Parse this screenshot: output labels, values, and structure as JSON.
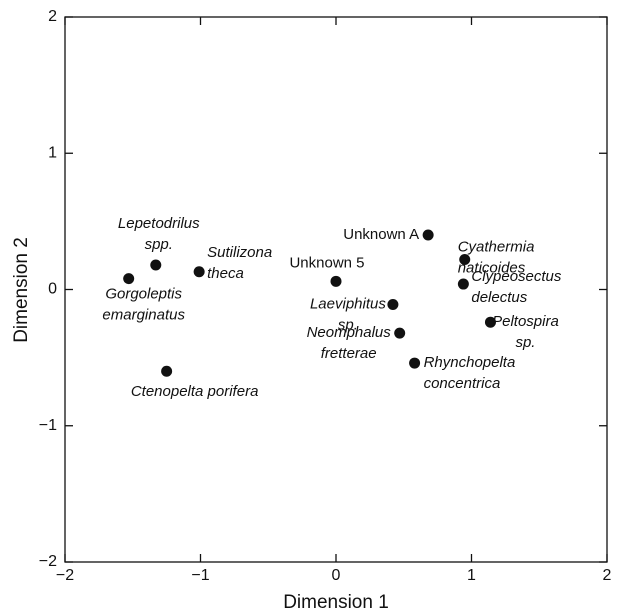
{
  "chart_data": {
    "type": "scatter",
    "xlabel": "Dimension 1",
    "ylabel": "Dimension 2",
    "xlim": [
      -2,
      2
    ],
    "ylim": [
      -2,
      2
    ],
    "xticks": [
      {
        "value": -2,
        "label": "−2"
      },
      {
        "value": -1,
        "label": "−1"
      },
      0,
      1,
      2
    ],
    "yticks": [
      {
        "value": -2,
        "label": "−2"
      },
      {
        "value": -1,
        "label": "−1"
      },
      0,
      1,
      2
    ],
    "color": "#111111",
    "x": [
      -1.53,
      -1.33,
      -1.01,
      -1.25,
      0.0,
      0.68,
      0.42,
      0.47,
      0.58,
      0.95,
      0.94,
      1.14
    ],
    "values": [
      0.08,
      0.18,
      0.13,
      -0.6,
      0.06,
      0.4,
      -0.11,
      -0.32,
      -0.54,
      0.22,
      0.04,
      -0.24
    ],
    "point_labels": [
      [
        "Gorgoleptis",
        "emarginatus"
      ],
      [
        "Lepetodrilus",
        "spp."
      ],
      [
        "Sutilizona",
        "theca"
      ],
      [
        "Ctenopelta porifera"
      ],
      [
        "Unknown 5"
      ],
      [
        "Unknown A"
      ],
      [
        "Laeviphitus",
        "sp."
      ],
      [
        "Neomphalus",
        "fretterae"
      ],
      [
        "Rhynchopelta",
        "concentrica"
      ],
      [
        "Cyathermia",
        "naticoides"
      ],
      [
        "Clypeosectus",
        "delectus"
      ],
      [
        "Peltospira",
        "sp."
      ]
    ],
    "label_style": [
      "italic",
      "italic",
      "italic",
      "italic",
      "normal",
      "normal",
      "italic",
      "italic",
      "italic",
      "italic",
      "italic",
      "italic"
    ]
  }
}
